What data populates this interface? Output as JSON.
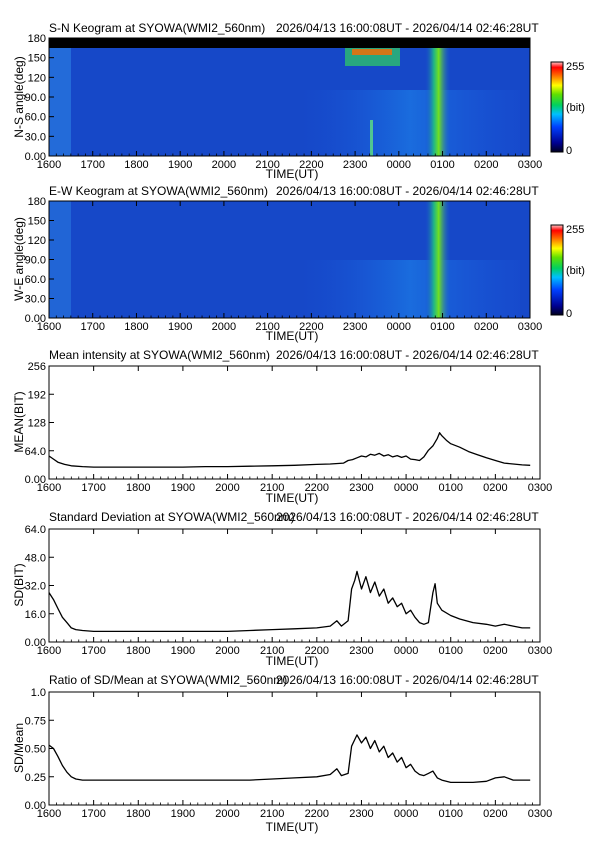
{
  "chart_data": [
    {
      "type": "heatmap",
      "title": "S-N Keogram at SYOWA(WMI2_560nm)",
      "subtitle": "2026/04/13 16:00:08UT - 2026/04/14 02:46:28UT",
      "xlabel": "TIME(UT)",
      "ylabel": "N-S angle(deg)",
      "x_ticks": [
        "1600",
        "1700",
        "1800",
        "1900",
        "2000",
        "2100",
        "2200",
        "2300",
        "0000",
        "0100",
        "0200",
        "0300"
      ],
      "y_ticks": [
        "0.00",
        "30.0",
        "60.0",
        "90.0",
        "120",
        "150",
        "180"
      ],
      "y_tick_values": [
        0,
        30,
        60,
        90,
        120,
        150,
        180
      ],
      "ylim": [
        0,
        180
      ],
      "colorbar": {
        "min_label": "0",
        "max_label": "255",
        "unit": "(bit)"
      },
      "notes": {
        "data_gap_above_deg": 168
      }
    },
    {
      "type": "heatmap",
      "title": "E-W Keogram at SYOWA(WMI2_560nm)",
      "subtitle": "2026/04/13 16:00:08UT - 2026/04/14 02:46:28UT",
      "xlabel": "TIME(UT)",
      "ylabel": "W-E angle(deg)",
      "x_ticks": [
        "1600",
        "1700",
        "1800",
        "1900",
        "2000",
        "2100",
        "2200",
        "2300",
        "0000",
        "0100",
        "0200",
        "0300"
      ],
      "y_ticks": [
        "0.00",
        "30.0",
        "60.0",
        "90.0",
        "120",
        "150",
        "180"
      ],
      "y_tick_values": [
        0,
        30,
        60,
        90,
        120,
        150,
        180
      ],
      "ylim": [
        0,
        180
      ],
      "colorbar": {
        "min_label": "0",
        "max_label": "255",
        "unit": "(bit)"
      }
    },
    {
      "type": "line",
      "title": "Mean intensity at SYOWA(WMI2_560nm)",
      "subtitle": "2026/04/13 16:00:08UT - 2026/04/14 02:46:28UT",
      "xlabel": "TIME(UT)",
      "ylabel": "MEAN(BIT)",
      "x_ticks": [
        "1600",
        "1700",
        "1800",
        "1900",
        "2000",
        "2100",
        "2200",
        "2300",
        "0000",
        "0100",
        "0200",
        "0300"
      ],
      "y_ticks": [
        "0.00",
        "64.0",
        "128",
        "192",
        "256"
      ],
      "y_tick_values": [
        0,
        64,
        128,
        192,
        256
      ],
      "ylim": [
        0,
        256
      ],
      "xlim_hours": [
        16,
        27
      ],
      "x": [
        16.0,
        16.1,
        16.2,
        16.35,
        16.5,
        16.75,
        17.0,
        17.5,
        18.0,
        18.5,
        19.0,
        19.5,
        20.0,
        20.5,
        21.0,
        21.5,
        22.0,
        22.3,
        22.6,
        22.7,
        22.8,
        22.9,
        23.0,
        23.1,
        23.2,
        23.3,
        23.4,
        23.5,
        23.6,
        23.7,
        23.8,
        23.9,
        24.0,
        24.1,
        24.2,
        24.3,
        24.4,
        24.5,
        24.6,
        24.7,
        24.75,
        24.8,
        24.9,
        25.0,
        25.2,
        25.4,
        25.6,
        25.8,
        26.0,
        26.2,
        26.4,
        26.6,
        26.78
      ],
      "y": [
        52,
        45,
        38,
        33,
        30,
        28,
        27,
        27,
        27,
        27,
        27,
        28,
        28,
        29,
        30,
        31,
        33,
        34,
        36,
        42,
        44,
        48,
        52,
        50,
        56,
        54,
        58,
        52,
        55,
        50,
        53,
        49,
        52,
        45,
        44,
        42,
        50,
        65,
        75,
        92,
        105,
        98,
        88,
        80,
        72,
        62,
        55,
        48,
        42,
        36,
        34,
        32,
        31
      ]
    },
    {
      "type": "line",
      "title": "Standard Deviation at SYOWA(WMI2_560nm)",
      "subtitle": "2026/04/13 16:00:08UT - 2026/04/14 02:46:28UT",
      "xlabel": "TIME(UT)",
      "ylabel": "SD(BIT)",
      "x_ticks": [
        "1600",
        "1700",
        "1800",
        "1900",
        "2000",
        "2100",
        "2200",
        "2300",
        "0000",
        "0100",
        "0200",
        "0300"
      ],
      "y_ticks": [
        "0.00",
        "16.0",
        "32.0",
        "48.0",
        "64.0"
      ],
      "y_tick_values": [
        0,
        16,
        32,
        48,
        64
      ],
      "ylim": [
        0,
        64
      ],
      "xlim_hours": [
        16,
        27
      ],
      "x": [
        16.0,
        16.1,
        16.2,
        16.3,
        16.4,
        16.5,
        16.6,
        16.75,
        17.0,
        17.5,
        18.0,
        18.5,
        19.0,
        19.5,
        20.0,
        20.5,
        21.0,
        21.5,
        22.0,
        22.3,
        22.45,
        22.55,
        22.7,
        22.78,
        22.85,
        22.9,
        23.0,
        23.1,
        23.2,
        23.3,
        23.4,
        23.5,
        23.6,
        23.7,
        23.8,
        23.9,
        24.0,
        24.1,
        24.2,
        24.3,
        24.4,
        24.5,
        24.6,
        24.65,
        24.7,
        24.8,
        25.0,
        25.2,
        25.5,
        25.8,
        26.0,
        26.2,
        26.4,
        26.6,
        26.78
      ],
      "y": [
        28,
        24,
        19,
        14,
        11,
        8,
        7,
        6.5,
        6,
        6,
        6,
        6,
        6,
        6,
        6,
        6.5,
        7,
        7.5,
        8,
        9,
        12,
        9,
        12,
        30,
        35,
        40,
        30,
        37,
        28,
        34,
        26,
        30,
        22,
        25,
        20,
        22,
        16,
        18,
        14,
        11,
        10,
        11,
        28,
        33,
        22,
        18,
        15,
        13,
        11,
        10,
        9,
        10,
        9,
        8,
        8
      ]
    },
    {
      "type": "line",
      "title": "Ratio of SD/Mean at SYOWA(WMI2_560nm)",
      "subtitle": "2026/04/13 16:00:08UT - 2026/04/14 02:46:28UT",
      "xlabel": "TIME(UT)",
      "ylabel": "SD/Mean",
      "x_ticks": [
        "1600",
        "1700",
        "1800",
        "1900",
        "2000",
        "2100",
        "2200",
        "2300",
        "0000",
        "0100",
        "0200",
        "0300"
      ],
      "y_ticks": [
        "0.00",
        "0.25",
        "0.50",
        "0.75",
        "1.0"
      ],
      "y_tick_values": [
        0,
        0.25,
        0.5,
        0.75,
        1.0
      ],
      "ylim": [
        0,
        1.0
      ],
      "xlim_hours": [
        16,
        27
      ],
      "x": [
        16.0,
        16.1,
        16.2,
        16.3,
        16.4,
        16.5,
        16.6,
        16.75,
        17.0,
        17.5,
        18.0,
        18.5,
        19.0,
        19.5,
        20.0,
        20.5,
        21.0,
        21.5,
        22.0,
        22.3,
        22.45,
        22.55,
        22.7,
        22.78,
        22.85,
        22.9,
        23.0,
        23.1,
        23.2,
        23.3,
        23.4,
        23.5,
        23.6,
        23.7,
        23.8,
        23.9,
        24.0,
        24.1,
        24.2,
        24.3,
        24.4,
        24.5,
        24.6,
        24.7,
        24.8,
        25.0,
        25.2,
        25.5,
        25.8,
        26.0,
        26.2,
        26.4,
        26.6,
        26.78
      ],
      "y": [
        0.53,
        0.5,
        0.43,
        0.35,
        0.29,
        0.25,
        0.23,
        0.22,
        0.22,
        0.22,
        0.22,
        0.22,
        0.22,
        0.22,
        0.22,
        0.22,
        0.23,
        0.24,
        0.25,
        0.27,
        0.32,
        0.26,
        0.28,
        0.52,
        0.58,
        0.62,
        0.55,
        0.6,
        0.5,
        0.57,
        0.47,
        0.52,
        0.42,
        0.46,
        0.38,
        0.42,
        0.33,
        0.36,
        0.3,
        0.27,
        0.26,
        0.28,
        0.3,
        0.24,
        0.22,
        0.2,
        0.2,
        0.2,
        0.21,
        0.24,
        0.25,
        0.22,
        0.22,
        0.22
      ]
    }
  ]
}
